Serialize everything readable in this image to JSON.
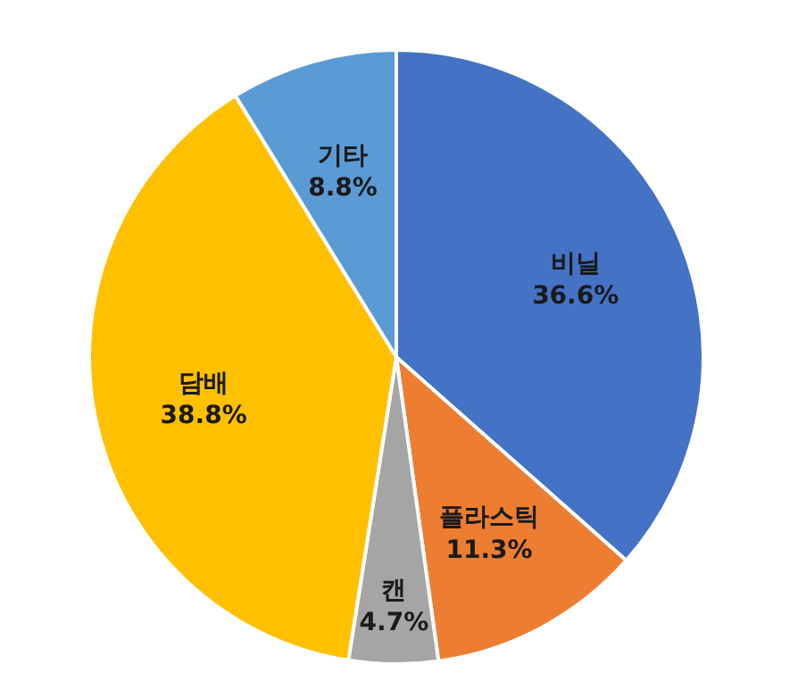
{
  "chart_data": {
    "type": "pie",
    "categories": [
      "비닐",
      "플라스틱",
      "캔",
      "담배",
      "기타"
    ],
    "values": [
      36.6,
      11.3,
      4.7,
      38.8,
      8.8
    ],
    "colors": [
      "#4472c4",
      "#ed7d31",
      "#a5a5a5",
      "#ffc000",
      "#5b9bd5"
    ],
    "value_labels": [
      "36.6%",
      "11.3%",
      "4.7%",
      "38.8%",
      "8.8%"
    ],
    "legend": false
  }
}
